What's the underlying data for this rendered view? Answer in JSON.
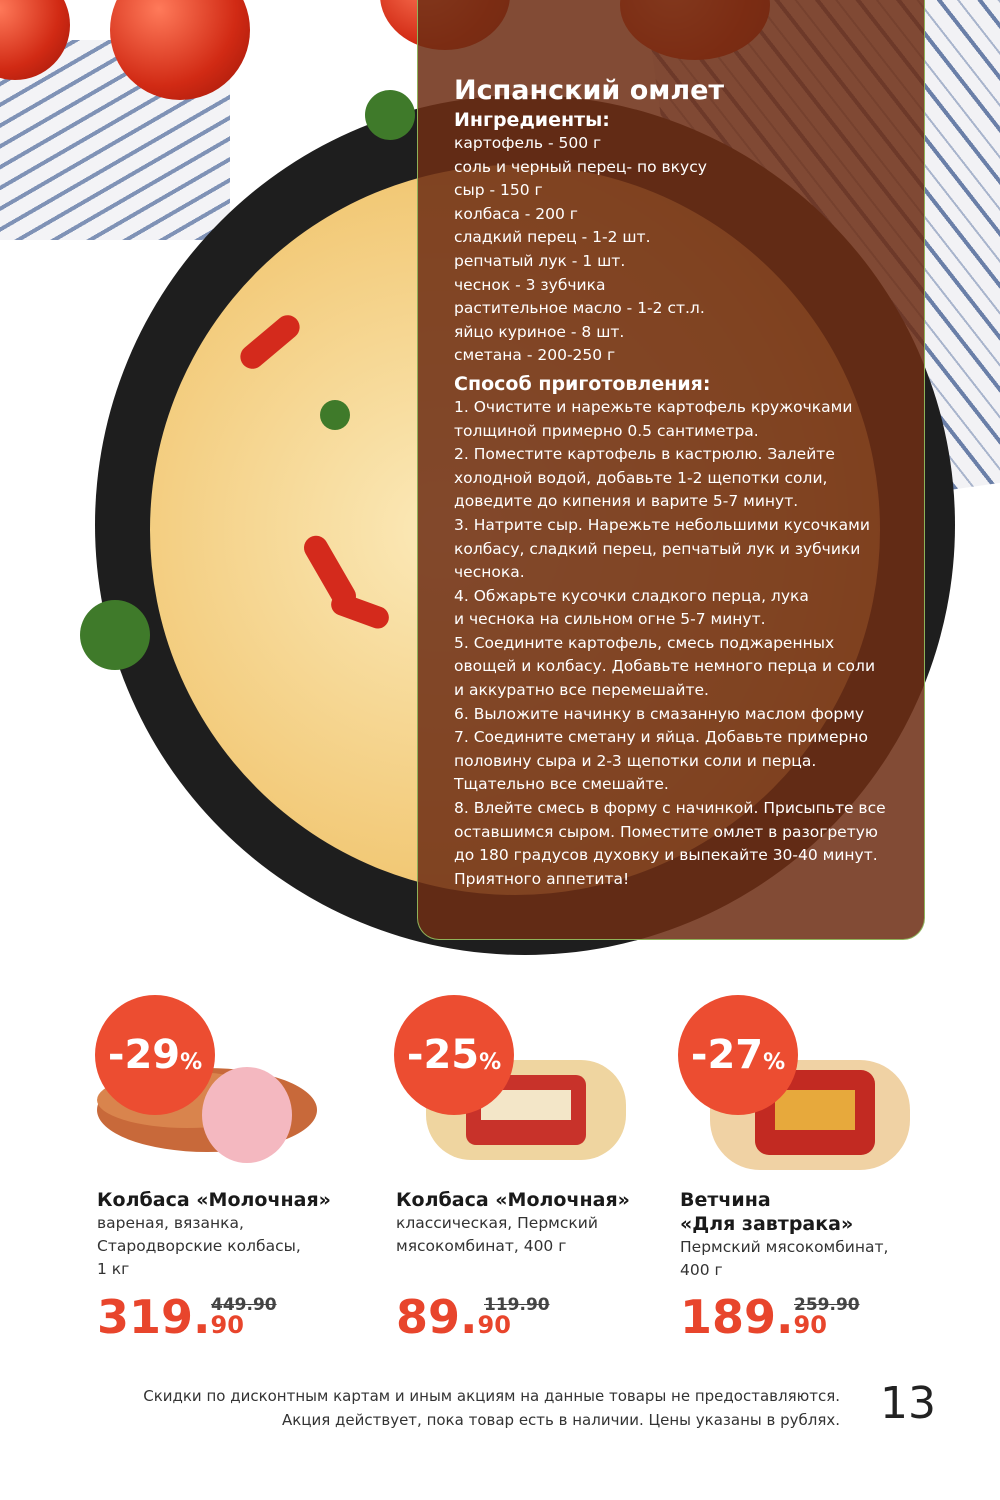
{
  "recipe": {
    "title": "Испанский омлет",
    "ingredients_heading": "Ингредиенты:",
    "ingredients": [
      "картофель - 500 г",
      "соль  и черный перец- по вкусу",
      "сыр - 150 г",
      "колбаса - 200 г",
      "сладкий перец - 1-2 шт.",
      "репчатый лук - 1 шт.",
      "чеснок - 3 зубчика",
      "растительное масло - 1-2 ст.л.",
      "яйцо куриное - 8 шт.",
      "сметана - 200-250 г"
    ],
    "method_heading": "Способ приготовления:",
    "method_lines": [
      "1. Очистите и нарежьте картофель кружочками",
      "толщиной примерно 0.5 сантиметра.",
      "2. Поместите картофель в кастрюлю. Залейте",
      "холодной водой, добавьте 1-2 щепотки соли,",
      "доведите до кипения и варите 5-7 минут.",
      "3. Натрите сыр. Нарежьте небольшими кусочками",
      "колбасу, сладкий перец, репчатый лук и зубчики",
      "чеснока.",
      "4. Обжарьте кусочки сладкого перца, лука",
      "и чеснока на сильном огне 5-7 минут.",
      "5. Соедините картофель, смесь поджаренных",
      "овощей и колбасу. Добавьте немного перца и соли",
      "и аккуратно все перемешайте.",
      "6. Выложите начинку в смазанную маслом форму",
      "7. Соедините сметану и яйца. Добавьте примерно",
      "половину сыра и 2-3 щепотки соли и перца.",
      "Тщательно все смешайте.",
      "8. Влейте смесь в форму с начинкой. Присыпьте все",
      "оставшимся сыром. Поместите омлет в разогретую",
      "до 180 градусов духовку и выпекайте 30-40 минут.",
      "Приятного аппетита!"
    ]
  },
  "products": [
    {
      "discount": "-29",
      "percent": "%",
      "name_lines": [
        "Колбаса «Молочная»"
      ],
      "desc_lines": [
        "вареная, вязанка,",
        "Стародворские колбасы,",
        "1 кг"
      ],
      "price_int": "319.",
      "price_kop": "90",
      "old_price": "449.90"
    },
    {
      "discount": "-25",
      "percent": "%",
      "name_lines": [
        "Колбаса «Молочная»"
      ],
      "desc_lines": [
        "классическая, Пермский",
        "мясокомбинат, 400 г"
      ],
      "price_int": "89.",
      "price_kop": "90",
      "old_price": "119.90"
    },
    {
      "discount": "-27",
      "percent": "%",
      "name_lines": [
        "Ветчина",
        "«Для завтрака»"
      ],
      "desc_lines": [
        "Пермский мясокомбинат,",
        "400 г"
      ],
      "price_int": "189.",
      "price_kop": "90",
      "old_price": "259.90"
    }
  ],
  "footer": {
    "line1": "Скидки по дисконтным картам и иным акциям на данные товары не предоставляются.",
    "line2": "Акция действует, пока товар есть в наличии. Цены указаны в рублях."
  },
  "page_number": "13",
  "colors": {
    "accent": "#e8452c",
    "recipe_bg": "#6e2d14"
  }
}
